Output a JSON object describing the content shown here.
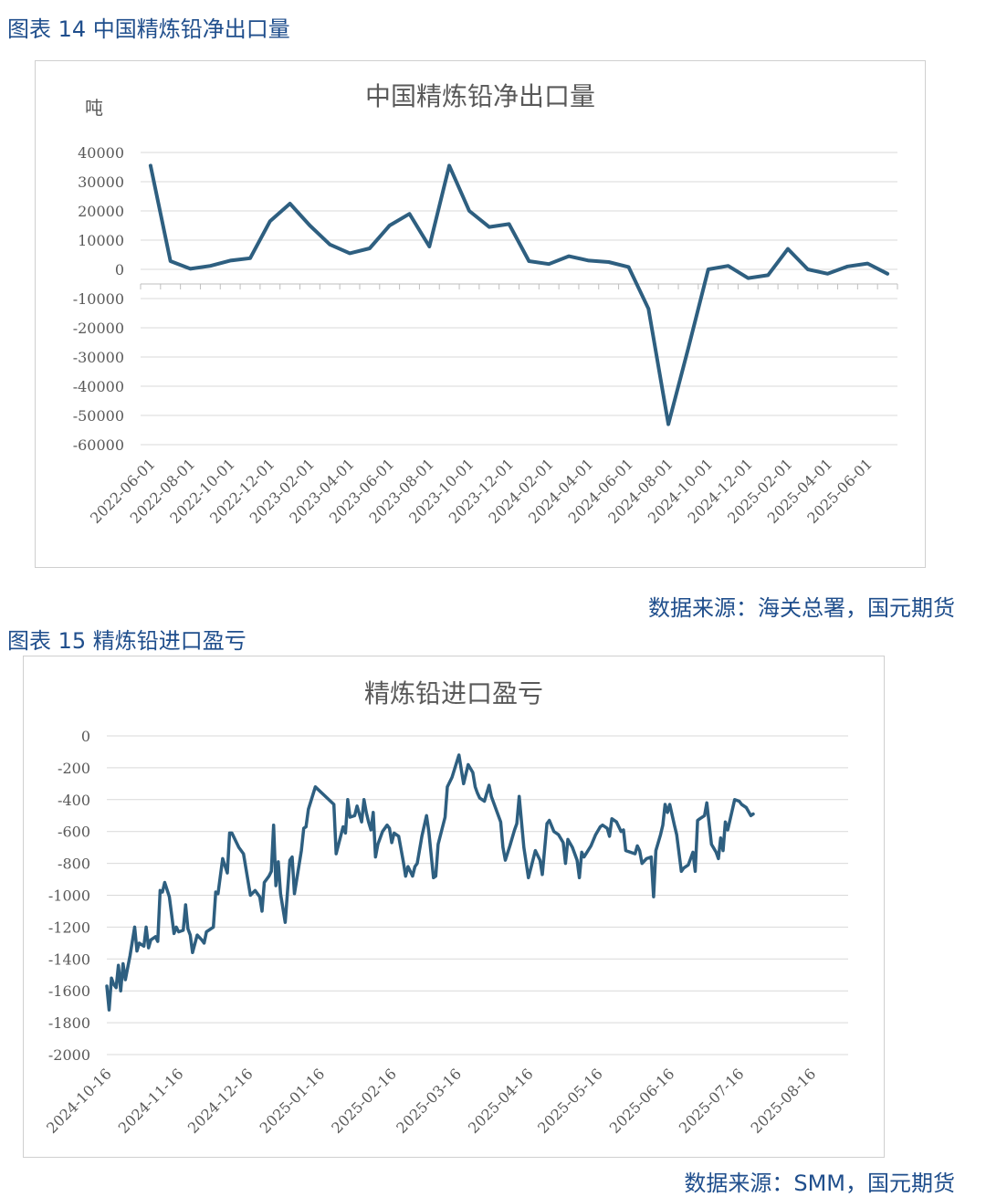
{
  "figure1": {
    "caption": "图表 14 中国精炼铅净出口量",
    "source": "数据来源：海关总署，国元期货",
    "chart_data": {
      "type": "line",
      "title": "中国精炼铅净出口量",
      "ylabel": "吨",
      "xlabel": "",
      "ylim": [
        -60000,
        40000
      ],
      "yticks": [
        "40000",
        "30000",
        "20000",
        "10000",
        "0",
        "-10000",
        "-20000",
        "-30000",
        "-40000",
        "-50000",
        "-60000"
      ],
      "xticks": [
        "2022-06-01",
        "2022-08-01",
        "2022-10-01",
        "2022-12-01",
        "2023-02-01",
        "2023-04-01",
        "2023-06-01",
        "2023-08-01",
        "2023-10-01",
        "2023-12-01",
        "2024-02-01",
        "2024-04-01",
        "2024-06-01",
        "2024-08-01",
        "2024-10-01",
        "2024-12-01",
        "2025-02-01",
        "2025-04-01",
        "2025-06-01"
      ],
      "x": [
        "2022-06",
        "2022-07",
        "2022-08",
        "2022-09",
        "2022-10",
        "2022-11",
        "2022-12",
        "2023-01",
        "2023-02",
        "2023-03",
        "2023-04",
        "2023-05",
        "2023-06",
        "2023-07",
        "2023-08",
        "2023-09",
        "2023-10",
        "2023-11",
        "2023-12",
        "2024-01",
        "2024-02",
        "2024-03",
        "2024-04",
        "2024-05",
        "2024-06",
        "2024-07",
        "2024-08",
        "2024-09",
        "2024-10",
        "2024-11",
        "2024-12",
        "2025-01",
        "2025-02",
        "2025-03",
        "2025-04",
        "2025-05",
        "2025-06",
        "2025-07"
      ],
      "series": [
        {
          "values": [
            35500,
            2800,
            200,
            1200,
            3000,
            3800,
            16500,
            22500,
            15000,
            8500,
            5500,
            7200,
            15000,
            19000,
            7800,
            35500,
            20000,
            14500,
            15500,
            2800,
            1800,
            4500,
            3000,
            2500,
            800,
            -13500,
            -53000,
            -27000,
            0,
            1200,
            -3000,
            -2000,
            7000,
            0,
            -1500,
            1000,
            2000,
            -1500
          ]
        }
      ],
      "color": "#2e5f80",
      "grid": true
    }
  },
  "figure2": {
    "caption": "图表 15 精炼铅进口盈亏",
    "source": "数据来源：SMM，国元期货",
    "chart_data": {
      "type": "line",
      "title": "精炼铅进口盈亏",
      "xlabel": "",
      "ylabel": "",
      "ylim": [
        -2000,
        0
      ],
      "yticks": [
        "0",
        "-200",
        "-400",
        "-600",
        "-800",
        "-1000",
        "-1200",
        "-1400",
        "-1600",
        "-1800",
        "-2000"
      ],
      "xticks": [
        "2024-10-16",
        "2024-11-16",
        "2024-12-16",
        "2025-01-16",
        "2025-02-16",
        "2025-03-16",
        "2025-04-16",
        "2025-05-16",
        "2025-06-16",
        "2025-07-16",
        "2025-08-16"
      ],
      "x_range": [
        "2024-10-16",
        "2025-09-01"
      ],
      "points": [
        [
          "2024-10-16",
          -1570
        ],
        [
          "2024-10-17",
          -1720
        ],
        [
          "2024-10-18",
          -1520
        ],
        [
          "2024-10-19",
          -1560
        ],
        [
          "2024-10-20",
          -1580
        ],
        [
          "2024-10-21",
          -1440
        ],
        [
          "2024-10-22",
          -1600
        ],
        [
          "2024-10-23",
          -1430
        ],
        [
          "2024-10-24",
          -1530
        ],
        [
          "2024-10-26",
          -1380
        ],
        [
          "2024-10-28",
          -1200
        ],
        [
          "2024-10-29",
          -1350
        ],
        [
          "2024-10-30",
          -1300
        ],
        [
          "2024-11-01",
          -1320
        ],
        [
          "2024-11-02",
          -1200
        ],
        [
          "2024-11-03",
          -1330
        ],
        [
          "2024-11-04",
          -1280
        ],
        [
          "2024-11-06",
          -1260
        ],
        [
          "2024-11-07",
          -1290
        ],
        [
          "2024-11-08",
          -970
        ],
        [
          "2024-11-09",
          -980
        ],
        [
          "2024-11-10",
          -920
        ],
        [
          "2024-11-12",
          -1010
        ],
        [
          "2024-11-14",
          -1240
        ],
        [
          "2024-11-15",
          -1200
        ],
        [
          "2024-11-16",
          -1230
        ],
        [
          "2024-11-18",
          -1220
        ],
        [
          "2024-11-19",
          -1060
        ],
        [
          "2024-11-20",
          -1210
        ],
        [
          "2024-11-21",
          -1250
        ],
        [
          "2024-11-22",
          -1360
        ],
        [
          "2024-11-24",
          -1250
        ],
        [
          "2024-11-26",
          -1280
        ],
        [
          "2024-11-27",
          -1300
        ],
        [
          "2024-11-28",
          -1230
        ],
        [
          "2024-12-01",
          -1200
        ],
        [
          "2024-12-02",
          -980
        ],
        [
          "2024-12-03",
          -990
        ],
        [
          "2024-12-05",
          -770
        ],
        [
          "2024-12-07",
          -860
        ],
        [
          "2024-12-08",
          -610
        ],
        [
          "2024-12-09",
          -610
        ],
        [
          "2024-12-12",
          -700
        ],
        [
          "2024-12-14",
          -740
        ],
        [
          "2024-12-17",
          -1000
        ],
        [
          "2024-12-19",
          -970
        ],
        [
          "2024-12-21",
          -1010
        ],
        [
          "2024-12-22",
          -1100
        ],
        [
          "2024-12-23",
          -920
        ],
        [
          "2024-12-25",
          -880
        ],
        [
          "2024-12-26",
          -850
        ],
        [
          "2024-12-27",
          -560
        ],
        [
          "2024-12-28",
          -940
        ],
        [
          "2024-12-29",
          -790
        ],
        [
          "2024-12-30",
          -990
        ],
        [
          "2025-01-01",
          -1170
        ],
        [
          "2025-01-03",
          -780
        ],
        [
          "2025-01-04",
          -760
        ],
        [
          "2025-01-05",
          -990
        ],
        [
          "2025-01-08",
          -720
        ],
        [
          "2025-01-09",
          -580
        ],
        [
          "2025-01-10",
          -570
        ],
        [
          "2025-01-11",
          -460
        ],
        [
          "2025-01-14",
          -320
        ],
        [
          "2025-01-22",
          -430
        ],
        [
          "2025-01-23",
          -740
        ],
        [
          "2025-01-26",
          -570
        ],
        [
          "2025-01-27",
          -610
        ],
        [
          "2025-01-28",
          -400
        ],
        [
          "2025-01-29",
          -510
        ],
        [
          "2025-01-31",
          -500
        ],
        [
          "2025-02-01",
          -440
        ],
        [
          "2025-02-03",
          -540
        ],
        [
          "2025-02-04",
          -400
        ],
        [
          "2025-02-05",
          -480
        ],
        [
          "2025-02-06",
          -540
        ],
        [
          "2025-02-07",
          -590
        ],
        [
          "2025-02-08",
          -480
        ],
        [
          "2025-02-09",
          -760
        ],
        [
          "2025-02-10",
          -680
        ],
        [
          "2025-02-12",
          -600
        ],
        [
          "2025-02-14",
          -560
        ],
        [
          "2025-02-15",
          -580
        ],
        [
          "2025-02-16",
          -670
        ],
        [
          "2025-02-17",
          -610
        ],
        [
          "2025-02-19",
          -630
        ],
        [
          "2025-02-21",
          -790
        ],
        [
          "2025-02-22",
          -880
        ],
        [
          "2025-02-23",
          -820
        ],
        [
          "2025-02-24",
          -850
        ],
        [
          "2025-02-25",
          -880
        ],
        [
          "2025-02-26",
          -820
        ],
        [
          "2025-02-27",
          -800
        ],
        [
          "2025-03-01",
          -630
        ],
        [
          "2025-03-03",
          -500
        ],
        [
          "2025-03-04",
          -600
        ],
        [
          "2025-03-06",
          -890
        ],
        [
          "2025-03-07",
          -880
        ],
        [
          "2025-03-08",
          -680
        ],
        [
          "2025-03-11",
          -510
        ],
        [
          "2025-03-12",
          -320
        ],
        [
          "2025-03-14",
          -260
        ],
        [
          "2025-03-17",
          -120
        ],
        [
          "2025-03-19",
          -300
        ],
        [
          "2025-03-21",
          -180
        ],
        [
          "2025-03-23",
          -230
        ],
        [
          "2025-03-24",
          -320
        ],
        [
          "2025-03-25",
          -360
        ],
        [
          "2025-03-26",
          -390
        ],
        [
          "2025-03-28",
          -410
        ],
        [
          "2025-03-30",
          -310
        ],
        [
          "2025-03-31",
          -380
        ],
        [
          "2025-04-04",
          -540
        ],
        [
          "2025-04-05",
          -700
        ],
        [
          "2025-04-06",
          -780
        ],
        [
          "2025-04-08",
          -690
        ],
        [
          "2025-04-10",
          -590
        ],
        [
          "2025-04-11",
          -550
        ],
        [
          "2025-04-12",
          -380
        ],
        [
          "2025-04-14",
          -700
        ],
        [
          "2025-04-16",
          -890
        ],
        [
          "2025-04-19",
          -720
        ],
        [
          "2025-04-21",
          -780
        ],
        [
          "2025-04-22",
          -870
        ],
        [
          "2025-04-24",
          -550
        ],
        [
          "2025-04-25",
          -530
        ],
        [
          "2025-04-27",
          -600
        ],
        [
          "2025-04-29",
          -620
        ],
        [
          "2025-05-01",
          -670
        ],
        [
          "2025-05-02",
          -800
        ],
        [
          "2025-05-03",
          -650
        ],
        [
          "2025-05-05",
          -700
        ],
        [
          "2025-05-07",
          -780
        ],
        [
          "2025-05-08",
          -890
        ],
        [
          "2025-05-09",
          -730
        ],
        [
          "2025-05-10",
          -760
        ],
        [
          "2025-05-13",
          -690
        ],
        [
          "2025-05-15",
          -620
        ],
        [
          "2025-05-17",
          -570
        ],
        [
          "2025-05-18",
          -560
        ],
        [
          "2025-05-20",
          -580
        ],
        [
          "2025-05-21",
          -630
        ],
        [
          "2025-05-22",
          -520
        ],
        [
          "2025-05-24",
          -540
        ],
        [
          "2025-05-26",
          -600
        ],
        [
          "2025-05-27",
          -590
        ],
        [
          "2025-05-28",
          -720
        ],
        [
          "2025-05-30",
          -730
        ],
        [
          "2025-06-01",
          -740
        ],
        [
          "2025-06-02",
          -690
        ],
        [
          "2025-06-03",
          -720
        ],
        [
          "2025-06-04",
          -800
        ],
        [
          "2025-06-06",
          -770
        ],
        [
          "2025-06-08",
          -760
        ],
        [
          "2025-06-09",
          -1010
        ],
        [
          "2025-06-10",
          -720
        ],
        [
          "2025-06-12",
          -620
        ],
        [
          "2025-06-13",
          -560
        ],
        [
          "2025-06-14",
          -430
        ],
        [
          "2025-06-15",
          -480
        ],
        [
          "2025-06-16",
          -430
        ],
        [
          "2025-06-18",
          -560
        ],
        [
          "2025-06-19",
          -620
        ],
        [
          "2025-06-21",
          -850
        ],
        [
          "2025-06-22",
          -830
        ],
        [
          "2025-06-24",
          -810
        ],
        [
          "2025-06-26",
          -730
        ],
        [
          "2025-06-27",
          -850
        ],
        [
          "2025-06-28",
          -530
        ],
        [
          "2025-06-29",
          -520
        ],
        [
          "2025-07-01",
          -500
        ],
        [
          "2025-07-02",
          -420
        ],
        [
          "2025-07-04",
          -680
        ],
        [
          "2025-07-06",
          -730
        ],
        [
          "2025-07-07",
          -770
        ],
        [
          "2025-07-08",
          -640
        ],
        [
          "2025-07-09",
          -720
        ],
        [
          "2025-07-10",
          -540
        ],
        [
          "2025-07-11",
          -590
        ],
        [
          "2025-07-14",
          -400
        ],
        [
          "2025-07-16",
          -410
        ],
        [
          "2025-07-17",
          -430
        ],
        [
          "2025-07-19",
          -450
        ],
        [
          "2025-07-21",
          -500
        ],
        [
          "2025-07-22",
          -490
        ]
      ],
      "color": "#2e5f80",
      "grid": true
    }
  }
}
